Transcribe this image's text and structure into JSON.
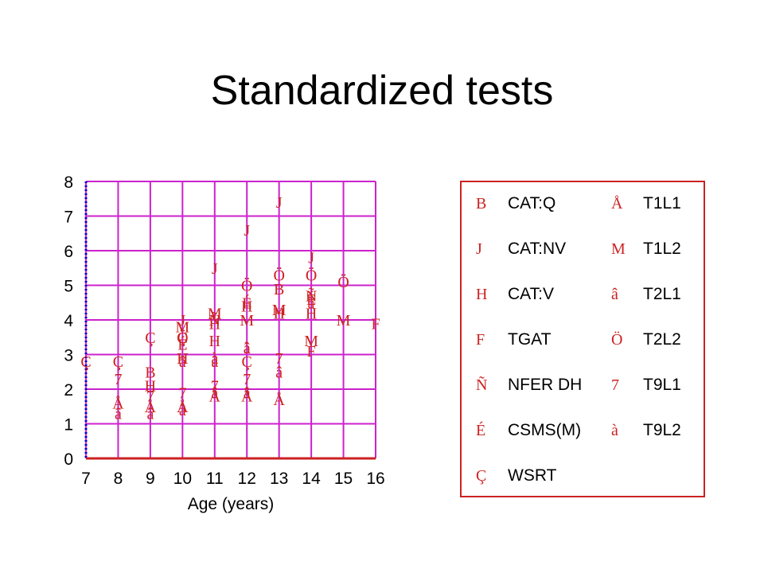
{
  "slide": {
    "title": "Standardized tests"
  },
  "colors": {
    "plot": "#cc2222",
    "grid": "#cc22cc",
    "axis": "#0000cc",
    "text": "#000000"
  },
  "chart_data": {
    "type": "scatter",
    "xlabel": "Age (years)",
    "ylabel": "",
    "xlim": [
      7,
      16
    ],
    "ylim": [
      0,
      8
    ],
    "xticks": [
      "7",
      "8",
      "9",
      "10",
      "11",
      "12",
      "13",
      "14",
      "15",
      "16"
    ],
    "yticks": [
      "0",
      "1",
      "2",
      "3",
      "4",
      "5",
      "6",
      "7",
      "8"
    ],
    "grid": true,
    "legend_position": "right",
    "series": [
      {
        "name": "CAT:Q",
        "marker": "B",
        "points": [
          [
            9,
            2.5
          ],
          [
            13,
            4.9
          ]
        ]
      },
      {
        "name": "CAT:NV",
        "marker": "J",
        "points": [
          [
            10,
            4.0
          ],
          [
            11,
            5.5
          ],
          [
            12,
            6.6
          ],
          [
            13,
            7.4
          ],
          [
            14,
            5.8
          ]
        ]
      },
      {
        "name": "CAT:V",
        "marker": "H",
        "points": [
          [
            9,
            2.1
          ],
          [
            10,
            2.9
          ],
          [
            11,
            3.9
          ],
          [
            11,
            3.4
          ],
          [
            12,
            4.4
          ],
          [
            13,
            4.2
          ],
          [
            14,
            4.2
          ]
        ]
      },
      {
        "name": "TGAT",
        "marker": "F",
        "points": [
          [
            16,
            3.9
          ],
          [
            14,
            3.1
          ]
        ]
      },
      {
        "name": "NFER DH",
        "marker": "Ñ",
        "points": [
          [
            11,
            4.0
          ],
          [
            14,
            4.7
          ]
        ]
      },
      {
        "name": "CSMS(M)",
        "marker": "É",
        "points": [
          [
            10,
            3.3
          ],
          [
            12,
            4.5
          ],
          [
            14,
            4.6
          ]
        ]
      },
      {
        "name": "WSRT",
        "marker": "Ç",
        "points": [
          [
            7,
            2.8
          ],
          [
            8,
            2.8
          ],
          [
            9,
            3.5
          ],
          [
            10,
            3.5
          ],
          [
            12,
            2.8
          ]
        ]
      },
      {
        "name": "T1L1",
        "marker": "Å",
        "points": [
          [
            8,
            1.6
          ],
          [
            9,
            1.5
          ],
          [
            10,
            1.5
          ],
          [
            11,
            1.8
          ],
          [
            12,
            1.8
          ],
          [
            13,
            1.7
          ]
        ]
      },
      {
        "name": "T1L2",
        "marker": "M",
        "points": [
          [
            10,
            3.8
          ],
          [
            11,
            4.2
          ],
          [
            12,
            4.0
          ],
          [
            13,
            4.3
          ],
          [
            14,
            3.4
          ],
          [
            15,
            4.0
          ]
        ]
      },
      {
        "name": "T2L1",
        "marker": "â",
        "points": [
          [
            8,
            1.3
          ],
          [
            9,
            1.3
          ],
          [
            10,
            2.8
          ],
          [
            10,
            1.4
          ],
          [
            11,
            2.8
          ],
          [
            11,
            1.9
          ],
          [
            12,
            1.9
          ],
          [
            12,
            3.2
          ],
          [
            13,
            2.5
          ]
        ]
      },
      {
        "name": "T2L2",
        "marker": "Ö",
        "points": [
          [
            10,
            3.5
          ],
          [
            12,
            5.0
          ],
          [
            13,
            5.3
          ],
          [
            14,
            5.3
          ],
          [
            15,
            5.1
          ]
        ]
      },
      {
        "name": "T9L1",
        "marker": "7",
        "points": [
          [
            8,
            2.3
          ],
          [
            9,
            1.8
          ],
          [
            10,
            1.9
          ],
          [
            11,
            2.1
          ],
          [
            12,
            2.3
          ],
          [
            13,
            2.9
          ]
        ]
      },
      {
        "name": "T9L2",
        "marker": "à",
        "points": [
          [
            11,
            2.9
          ],
          [
            12,
            3.2
          ],
          [
            14,
            4.5
          ]
        ]
      }
    ]
  },
  "legend": {
    "items": [
      {
        "symbol": "B",
        "label": "CAT:Q"
      },
      {
        "symbol": "J",
        "label": "CAT:NV"
      },
      {
        "symbol": "H",
        "label": "CAT:V"
      },
      {
        "symbol": "F",
        "label": "TGAT"
      },
      {
        "symbol": "Ñ",
        "label": "NFER DH"
      },
      {
        "symbol": "É",
        "label": "CSMS(M)"
      },
      {
        "symbol": "Ç",
        "label": "WSRT"
      },
      {
        "symbol": "Å",
        "label": "T1L1"
      },
      {
        "symbol": "M",
        "label": "T1L2"
      },
      {
        "symbol": "â",
        "label": "T2L1"
      },
      {
        "symbol": "Ö",
        "label": "T2L2"
      },
      {
        "symbol": "7",
        "label": "T9L1"
      },
      {
        "symbol": "à",
        "label": "T9L2"
      }
    ]
  }
}
